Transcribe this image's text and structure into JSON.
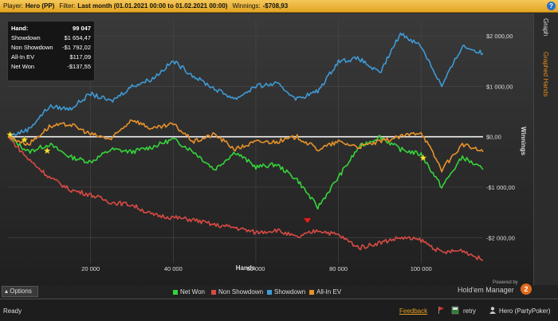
{
  "titlebar": {
    "player_label": "Player:",
    "player_value": "Hero (PP)",
    "filter_label": "Filter:",
    "filter_value": "Last month (01.01.2021 00:00 to 01.02.2021 00:00)",
    "winnings_label": "Winnings:",
    "winnings_value": "-$708,93",
    "help_label": "?"
  },
  "stats": [
    {
      "label": "Hand:",
      "value": "99 047"
    },
    {
      "label": "Showdown",
      "value": "$1 654,47"
    },
    {
      "label": "Non Showdown",
      "value": "-$1 792,02"
    },
    {
      "label": "All-In EV",
      "value": "$117,09"
    },
    {
      "label": "Net Won",
      "value": "-$137,55"
    }
  ],
  "tabs": {
    "graph": "Graph",
    "graphed_hands": "Graphed Hands"
  },
  "options_label": "Options",
  "powered_text": "Powered by",
  "logo_text": "Hold'em Manager",
  "logo_badge": "2",
  "status": {
    "ready": "Ready",
    "feedback": "Feedback",
    "retry": "retry",
    "user": "Hero (PartyPoker)"
  },
  "colors": {
    "net_won": "#36d43a",
    "non_showdown": "#d94a44",
    "showdown": "#3f9ad6",
    "all_in_ev": "#e8922a",
    "accent": "#e8a020"
  },
  "chart_data": {
    "type": "line",
    "xlabel": "Hands",
    "ylabel": "Winnings",
    "xlim": [
      0,
      115000
    ],
    "ylim": [
      -2500,
      2300
    ],
    "x_ticks": [
      20000,
      40000,
      60000,
      80000,
      100000
    ],
    "x_tick_labels": [
      "20 000",
      "40 000",
      "60 000",
      "80 000",
      "100 000"
    ],
    "y_ticks": [
      2000,
      1000,
      0,
      -1000,
      -2000
    ],
    "y_tick_labels": [
      "$2 000,00",
      "$1 000,00",
      "$0,00",
      "-$1 000,00",
      "-$2 000,00"
    ],
    "grid": true,
    "legend_position": "bottom",
    "x": [
      0,
      5000,
      10000,
      15000,
      20000,
      25000,
      30000,
      35000,
      40000,
      45000,
      50000,
      55000,
      60000,
      65000,
      70000,
      75000,
      80000,
      85000,
      90000,
      95000,
      100000,
      105000,
      110000,
      115000
    ],
    "series": [
      {
        "name": "Net Won",
        "color_key": "net_won",
        "values": [
          0,
          -300,
          -150,
          -400,
          -500,
          -250,
          -300,
          -200,
          -50,
          -300,
          -650,
          -300,
          -600,
          -550,
          -850,
          -1400,
          -800,
          -200,
          0,
          -250,
          -350,
          -1000,
          -400,
          -650
        ]
      },
      {
        "name": "Non Showdown",
        "color_key": "non_showdown",
        "values": [
          0,
          -450,
          -800,
          -1050,
          -1150,
          -1300,
          -1350,
          -1550,
          -1600,
          -1650,
          -1750,
          -1800,
          -1900,
          -1850,
          -2000,
          -1850,
          -1950,
          -2200,
          -2100,
          -2000,
          -2050,
          -2300,
          -2250,
          -2450
        ]
      },
      {
        "name": "Showdown",
        "color_key": "showdown",
        "values": [
          0,
          150,
          600,
          550,
          850,
          700,
          1000,
          1150,
          1500,
          1200,
          950,
          750,
          1000,
          1050,
          750,
          900,
          1500,
          1550,
          1250,
          2050,
          1800,
          1000,
          1800,
          1650
        ]
      },
      {
        "name": "All-In EV",
        "color_key": "all_in_ev",
        "values": [
          0,
          -150,
          200,
          250,
          50,
          -50,
          350,
          150,
          250,
          -100,
          50,
          -250,
          -100,
          -100,
          0,
          -250,
          -100,
          -200,
          -100,
          0,
          100,
          -650,
          -150,
          -300
        ]
      }
    ],
    "markers": [
      {
        "x": 500,
        "y": 40,
        "type": "star"
      },
      {
        "x": 4000,
        "y": -60,
        "type": "star"
      },
      {
        "x": 9500,
        "y": -280,
        "type": "star"
      },
      {
        "x": 100500,
        "y": -420,
        "type": "star"
      },
      {
        "x": 72500,
        "y": -1650,
        "type": "heart"
      }
    ]
  }
}
